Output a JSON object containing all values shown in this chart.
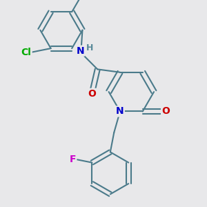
{
  "bg_color": "#e8e8ea",
  "bond_color": "#4a7a8a",
  "bond_width": 1.5,
  "atom_colors": {
    "N": "#0000cc",
    "O": "#cc0000",
    "Cl": "#00aa00",
    "F": "#cc00cc",
    "H": "#5a8a9a",
    "C": "#4a7a8a"
  },
  "font_size": 9
}
